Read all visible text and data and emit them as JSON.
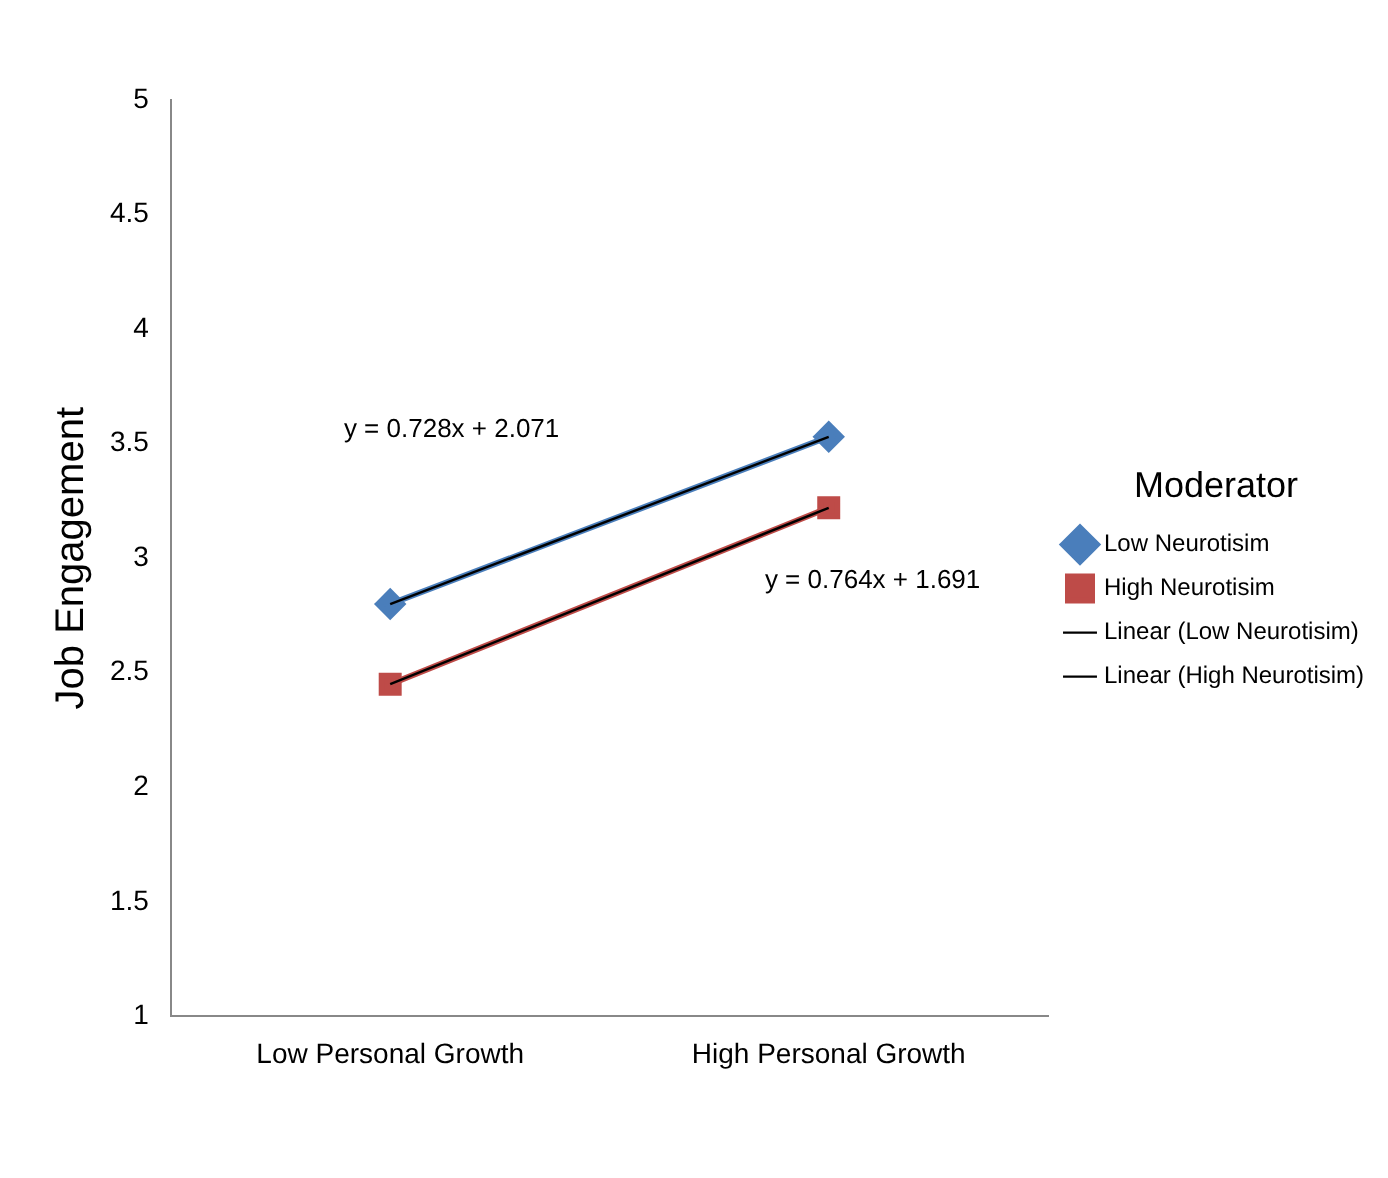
{
  "chart_data": {
    "type": "line",
    "ylabel": "Job Engagement",
    "legend_title": "Moderator",
    "legend": "right",
    "grid": false,
    "categories": [
      "Low Personal Growth",
      "High Personal Growth"
    ],
    "ylim": [
      1,
      5
    ],
    "yticks": [
      1,
      1.5,
      2,
      2.5,
      3,
      3.5,
      4,
      4.5,
      5
    ],
    "series": [
      {
        "name": "Low Neurotisim",
        "color": "#4a7ebb",
        "values": [
          2.8,
          3.53
        ],
        "marker": "diamond"
      },
      {
        "name": "High Neurotisim",
        "color": "#be4b48",
        "values": [
          2.45,
          3.22
        ],
        "marker": "square"
      },
      {
        "name": "Linear (Low Neurotisim)",
        "type": "line",
        "color": "#000000",
        "x": [
          "Low Personal Growth",
          "High Personal Growth"
        ],
        "values": [
          2.8,
          3.53
        ],
        "marker": "none"
      },
      {
        "name": "Linear (High Neurotisim)",
        "type": "line",
        "color": "#000000",
        "x": [
          "Low Personal Growth",
          "High Personal Growth"
        ],
        "values": [
          2.45,
          3.22
        ],
        "marker": "none"
      }
    ],
    "annotations": [
      "y = 0.728x + 2.071",
      "y = 0.764x + 1.691"
    ]
  }
}
